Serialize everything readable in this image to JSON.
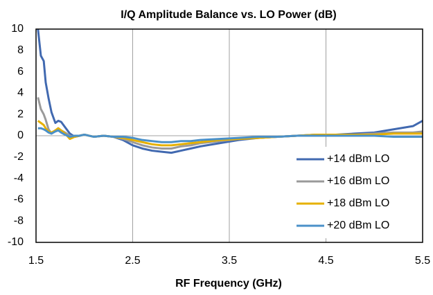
{
  "chart_data": {
    "type": "line",
    "title": "I/Q Amplitude Balance vs. LO Power (dB)",
    "x_label": "RF Frequency  (GHz)",
    "x": [
      1.52,
      1.55,
      1.58,
      1.6,
      1.63,
      1.66,
      1.7,
      1.73,
      1.76,
      1.8,
      1.85,
      1.9,
      1.95,
      2.0,
      2.1,
      2.2,
      2.3,
      2.4,
      2.5,
      2.6,
      2.7,
      2.8,
      2.9,
      3.0,
      3.1,
      3.2,
      3.4,
      3.6,
      3.8,
      4.0,
      4.2,
      4.4,
      4.6,
      4.8,
      5.0,
      5.2,
      5.4,
      5.5
    ],
    "series": [
      {
        "name": "+14 dBm LO",
        "color": "#4169b0",
        "values": [
          10,
          7.5,
          7,
          5,
          3.5,
          2.2,
          1.2,
          1.4,
          1.3,
          0.8,
          0.2,
          -0.1,
          0,
          0.1,
          -0.1,
          0,
          -0.1,
          -0.4,
          -0.9,
          -1.2,
          -1.4,
          -1.5,
          -1.6,
          -1.4,
          -1.2,
          -1,
          -0.7,
          -0.4,
          -0.2,
          -0.1,
          0,
          0.1,
          0.1,
          0.2,
          0.3,
          0.6,
          0.9,
          1.4
        ]
      },
      {
        "name": "+16 dBm LO",
        "color": "#9a9a9a",
        "values": [
          3.6,
          2.5,
          2,
          1.5,
          0.6,
          0.2,
          0.5,
          0.7,
          0.5,
          0.3,
          0,
          -0.1,
          0,
          0.1,
          -0.1,
          0,
          -0.1,
          -0.3,
          -0.6,
          -0.9,
          -1.1,
          -1.2,
          -1.2,
          -1,
          -0.9,
          -0.7,
          -0.5,
          -0.3,
          -0.2,
          -0.1,
          0,
          0.1,
          0.1,
          0.1,
          0.2,
          0.3,
          0.3,
          0.4
        ]
      },
      {
        "name": "+18 dBm LO",
        "color": "#e6b000",
        "values": [
          1.4,
          1.2,
          1,
          0.7,
          0.4,
          0.3,
          0.5,
          0.7,
          0.5,
          0.2,
          -0.3,
          -0.1,
          0,
          0.1,
          -0.1,
          0,
          -0.1,
          -0.2,
          -0.4,
          -0.6,
          -0.8,
          -0.9,
          -0.9,
          -0.8,
          -0.7,
          -0.6,
          -0.4,
          -0.3,
          -0.2,
          -0.1,
          0,
          0.1,
          0.1,
          0.1,
          0.1,
          0.2,
          0.2,
          0.2
        ]
      },
      {
        "name": "+20 dBm LO",
        "color": "#4a90c8",
        "values": [
          0.7,
          0.7,
          0.6,
          0.5,
          0.3,
          0.2,
          0.4,
          0.5,
          0.3,
          0.1,
          -0.1,
          0,
          0,
          0.1,
          -0.1,
          0,
          -0.1,
          -0.1,
          -0.2,
          -0.4,
          -0.5,
          -0.6,
          -0.6,
          -0.5,
          -0.5,
          -0.4,
          -0.3,
          -0.2,
          -0.1,
          -0.1,
          0,
          0,
          0,
          0,
          0,
          -0.1,
          -0.1,
          -0.1
        ]
      }
    ],
    "xlim": [
      1.5,
      5.5
    ],
    "xticks": [
      1.5,
      2.5,
      3.5,
      4.5,
      5.5
    ],
    "ylim": [
      -10,
      10
    ],
    "yticks": [
      -10,
      -8,
      -6,
      -4,
      -2,
      0,
      2,
      4,
      6,
      8,
      10
    ],
    "grid": true,
    "legend": "lower right"
  }
}
